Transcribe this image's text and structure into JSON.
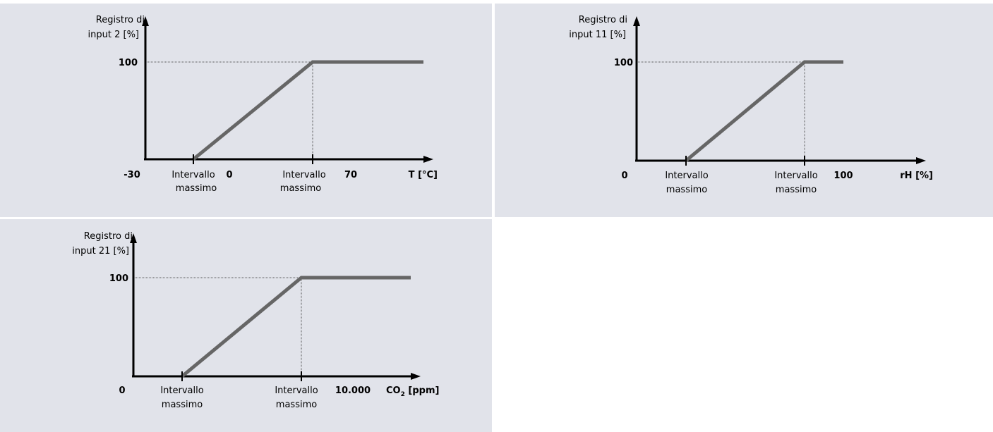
{
  "chart_data": [
    {
      "type": "line",
      "ylabel_line1": "Registro di",
      "ylabel_line2": "input 2 [%]",
      "xlabel": "T [°C]",
      "y_tick": "100",
      "x_ticks": [
        "-30",
        "0",
        "70"
      ],
      "range_labels": [
        {
          "line1": "Intervallo",
          "line2": "massimo"
        },
        {
          "line1": "Intervallo",
          "line2": "massimo"
        }
      ],
      "y_range": [
        0,
        100
      ],
      "series": [
        {
          "x": [
            "Intervallo massimo (inizio)",
            "Intervallo massimo (fine)",
            "max"
          ],
          "y": [
            0,
            100,
            100
          ]
        }
      ]
    },
    {
      "type": "line",
      "ylabel_line1": "Registro di",
      "ylabel_line2": "input 11 [%]",
      "xlabel": "rH [%]",
      "y_tick": "100",
      "x_ticks": [
        "0",
        "100"
      ],
      "range_labels": [
        {
          "line1": "Intervallo",
          "line2": "massimo"
        },
        {
          "line1": "Intervallo",
          "line2": "massimo"
        }
      ],
      "y_range": [
        0,
        100
      ],
      "series": [
        {
          "x": [
            "Intervallo massimo (inizio)",
            "Intervallo massimo (fine)",
            "max"
          ],
          "y": [
            0,
            100,
            100
          ]
        }
      ]
    },
    {
      "type": "line",
      "ylabel_line1": "Registro di",
      "ylabel_line2": "input 21 [%]",
      "xlabel_main": "CO",
      "xlabel_sub": "2",
      "xlabel_unit": " [ppm]",
      "y_tick": "100",
      "x_ticks": [
        "0",
        "10.000"
      ],
      "range_labels": [
        {
          "line1": "Intervallo",
          "line2": "massimo"
        },
        {
          "line1": "Intervallo",
          "line2": "massimo"
        }
      ],
      "y_range": [
        0,
        100
      ],
      "series": [
        {
          "x": [
            "Intervallo massimo (inizio)",
            "Intervallo massimo (fine)",
            "max"
          ],
          "y": [
            0,
            100,
            100
          ]
        }
      ]
    }
  ],
  "colors": {
    "panel": "#e1e3ea",
    "axis": "#000000",
    "curve": "#666666"
  }
}
